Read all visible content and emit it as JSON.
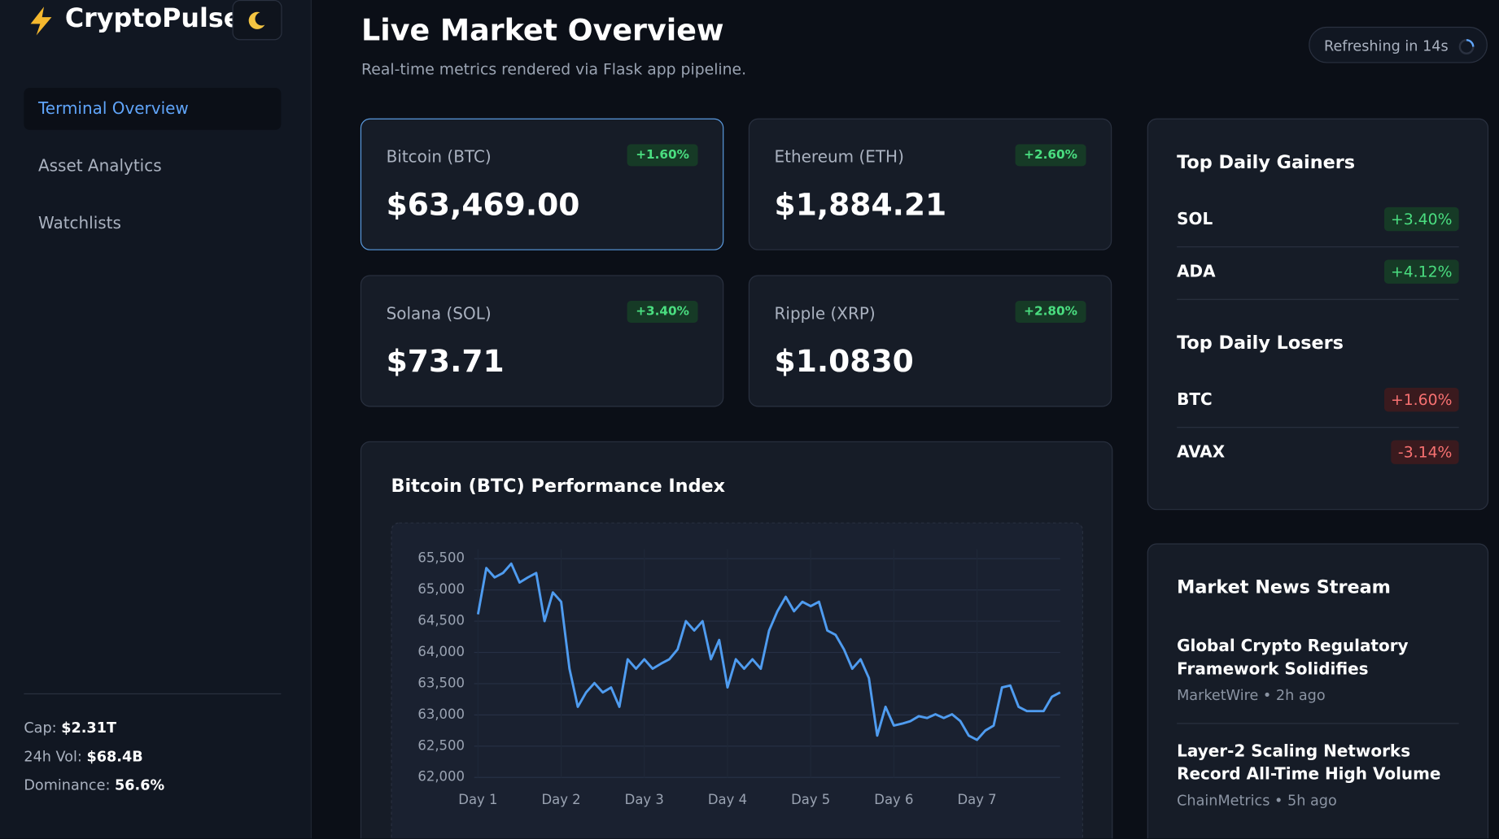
{
  "brand": {
    "name": "CryptoPulse"
  },
  "nav": [
    "Terminal Overview",
    "Asset Analytics",
    "Watchlists"
  ],
  "stats": [
    {
      "label": "Cap:",
      "value": "$2.31T"
    },
    {
      "label": "24h Vol:",
      "value": "$68.4B"
    },
    {
      "label": "Dominance:",
      "value": "56.6%"
    }
  ],
  "header": {
    "title": "Live Market Overview",
    "subtitle": "Real-time metrics rendered via Flask app pipeline.",
    "refresh": "Refreshing in 14s"
  },
  "cards": [
    {
      "name": "Bitcoin (BTC)",
      "change": "+1.60%",
      "price": "$63,469.00"
    },
    {
      "name": "Ethereum (ETH)",
      "change": "+2.60%",
      "price": "$1,884.21"
    },
    {
      "name": "Solana (SOL)",
      "change": "+3.40%",
      "price": "$73.71"
    },
    {
      "name": "Ripple (XRP)",
      "change": "+2.80%",
      "price": "$1.0830"
    }
  ],
  "movers": {
    "gainers_title": "Top Daily Gainers",
    "gainers": [
      {
        "symbol": "SOL",
        "change": "+3.40%"
      },
      {
        "symbol": "ADA",
        "change": "+4.12%"
      }
    ],
    "losers_title": "Top Daily Losers",
    "losers": [
      {
        "symbol": "BTC",
        "change": "+1.60%"
      },
      {
        "symbol": "AVAX",
        "change": "-3.14%"
      }
    ]
  },
  "news": {
    "title": "Market News Stream",
    "items": [
      {
        "headline": "Global Crypto Regulatory Framework Solidifies",
        "source": "MarketWire • 2h ago"
      },
      {
        "headline": "Layer-2 Scaling Networks Record All-Time High Volume",
        "source": "ChainMetrics • 5h ago"
      }
    ]
  },
  "chart_data": {
    "type": "line",
    "title": "Bitcoin (BTC) Performance Index",
    "color": "#4f9cf0",
    "grid": true,
    "x": [
      1,
      1.1,
      1.2,
      1.3,
      1.4,
      1.5,
      1.6,
      1.7,
      1.8,
      1.9,
      2,
      2.1,
      2.2,
      2.3,
      2.4,
      2.5,
      2.6,
      2.7,
      2.8,
      2.9,
      3,
      3.1,
      3.2,
      3.3,
      3.4,
      3.5,
      3.6,
      3.7,
      3.8,
      3.9,
      4,
      4.1,
      4.2,
      4.3,
      4.4,
      4.5,
      4.6,
      4.7,
      4.8,
      4.9,
      5,
      5.1,
      5.2,
      5.3,
      5.4,
      5.5,
      5.6,
      5.7,
      5.8,
      5.9,
      6,
      6.1,
      6.2,
      6.3,
      6.4,
      6.5,
      6.6,
      6.7,
      6.8,
      6.9,
      7,
      7.1,
      7.2,
      7.3,
      7.4,
      7.5,
      7.6,
      7.7,
      7.8,
      7.9,
      8
    ],
    "values": [
      64610,
      65350,
      65200,
      65270,
      65420,
      65120,
      65200,
      65270,
      64500,
      64960,
      64810,
      63740,
      63130,
      63360,
      63510,
      63360,
      63440,
      63130,
      63890,
      63740,
      63890,
      63740,
      63820,
      63890,
      64050,
      64500,
      64350,
      64500,
      63890,
      64200,
      63440,
      63890,
      63740,
      63890,
      63740,
      64350,
      64660,
      64890,
      64660,
      64810,
      64740,
      64810,
      64350,
      64280,
      64050,
      63740,
      63890,
      63590,
      62670,
      63130,
      62830,
      62860,
      62900,
      62980,
      62950,
      63010,
      62950,
      63010,
      62900,
      62670,
      62600,
      62750,
      62830,
      63440,
      63470,
      63130,
      63060,
      63060,
      63060,
      63290,
      63360
    ],
    "xlim": [
      1,
      8
    ],
    "xticks": [
      {
        "value": 1,
        "label": "Day 1"
      },
      {
        "value": 2,
        "label": "Day 2"
      },
      {
        "value": 3,
        "label": "Day 3"
      },
      {
        "value": 4,
        "label": "Day 4"
      },
      {
        "value": 5,
        "label": "Day 5"
      },
      {
        "value": 6,
        "label": "Day 6"
      },
      {
        "value": 7,
        "label": "Day 7"
      }
    ],
    "ylim": [
      62000,
      65500
    ],
    "yticks": [
      {
        "value": 62000,
        "label": "62,000"
      },
      {
        "value": 62500,
        "label": "62,500"
      },
      {
        "value": 63000,
        "label": "63,000"
      },
      {
        "value": 63500,
        "label": "63,500"
      },
      {
        "value": 64000,
        "label": "64,000"
      },
      {
        "value": 64500,
        "label": "64,500"
      },
      {
        "value": 65000,
        "label": "65,000"
      },
      {
        "value": 65500,
        "label": "65,500"
      }
    ]
  }
}
